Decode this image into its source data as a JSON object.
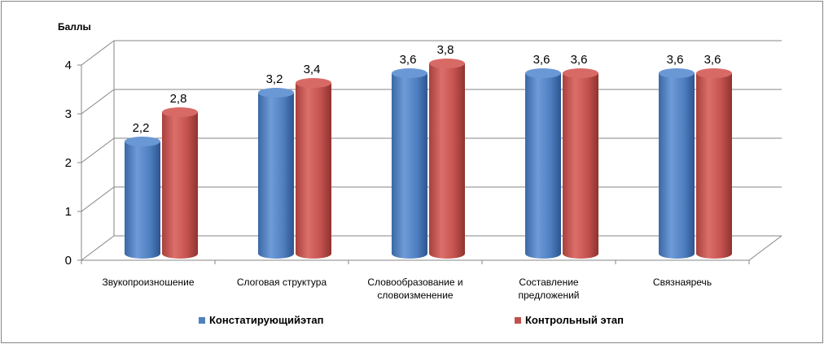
{
  "chart_data": {
    "type": "bar",
    "title": "",
    "xlabel": "",
    "ylabel": "Баллы",
    "ylim": [
      0,
      4
    ],
    "yticks": [
      "0",
      "1",
      "2",
      "3",
      "4"
    ],
    "grid": true,
    "legend_position": "bottom",
    "categories": [
      [
        "Звукопроизношение"
      ],
      [
        "Слоговая структура"
      ],
      [
        "Словообразование и",
        "словоизменение"
      ],
      [
        "Составление",
        "предложений"
      ],
      [
        "Связнаяречь"
      ]
    ],
    "series": [
      {
        "name": "Констатирующийэтап",
        "color": "#4F81BD",
        "values": [
          2.2,
          3.2,
          3.6,
          3.6,
          3.6
        ],
        "labels": [
          "2,2",
          "3,2",
          "3,6",
          "3,6",
          "3,6"
        ]
      },
      {
        "name": "Контрольный этап",
        "color": "#C0504D",
        "values": [
          2.8,
          3.4,
          3.8,
          3.6,
          3.6
        ],
        "labels": [
          "2,8",
          "3,4",
          "3,8",
          "3,6",
          "3,6"
        ]
      }
    ]
  }
}
